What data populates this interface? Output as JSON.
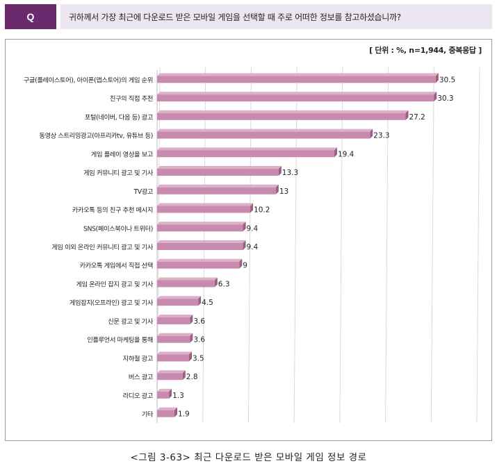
{
  "question": {
    "badge": "Q",
    "text": "귀하께서 가장 최근에 다운로드 받은 모바일 게임을 선택할 때 주로 어떠한 정보를 참고하셨습니까?"
  },
  "unit_note": "[ 단위 : %, n=1,944, 중복응답 ]",
  "caption": "<그림 3-63> 최근 다운로드 받은 모바일 게임 정보 경로",
  "colors": {
    "bar_front": "#c98aaf",
    "bar_top": "#dcb0c9",
    "bar_side": "#9c5e83",
    "grid": "#d9d9d9",
    "badge": "#6b2a6e",
    "question_bg": "#ece6f0"
  },
  "chart_data": {
    "type": "bar",
    "orientation": "horizontal",
    "categories": [
      "구글(플레이스토어), 아이폰(앱스토어)의 게임 순위",
      "친구의 직접 추천",
      "포털(네이버, 다음 등) 광고",
      "동영상 스트리밍광고(아프리카tv, 유튜브 등)",
      "게임 플레이 영상을 보고",
      "게임 커뮤니티 광고 및 기사",
      "TV광고",
      "카카오톡 등의 친구 추천 메시지",
      "SNS(페이스북이나 트위터)",
      "게임 이외 온라인 커뮤니티 광고 및 기사",
      "카카오톡 게임에서 직접 선택",
      "게임 온라인 잡지 광고 및 기사",
      "게임잡지(오프라인) 광고 및 기사",
      "신문 광고 및 기사",
      "인플루언서 마케팅을 통해",
      "지하철 광고",
      "버스 광고",
      "라디오 광고",
      "기타"
    ],
    "values": [
      30.5,
      30.3,
      27.2,
      23.3,
      19.4,
      13.3,
      13,
      10.2,
      9.4,
      9.4,
      9,
      6.3,
      4.5,
      3.6,
      3.6,
      3.5,
      2.8,
      1.3,
      1.9
    ],
    "value_labels": [
      "30.5",
      "30.3",
      "27.2",
      "23.3",
      "19.4",
      "13.3",
      "13",
      "10.2",
      "9.4",
      "9.4",
      "9",
      "6.3",
      "4.5",
      "3.6",
      "3.6",
      "3.5",
      "2.8",
      "1.3",
      "1.9"
    ],
    "xlim": [
      0,
      35
    ],
    "grid": true,
    "three_d": true
  }
}
